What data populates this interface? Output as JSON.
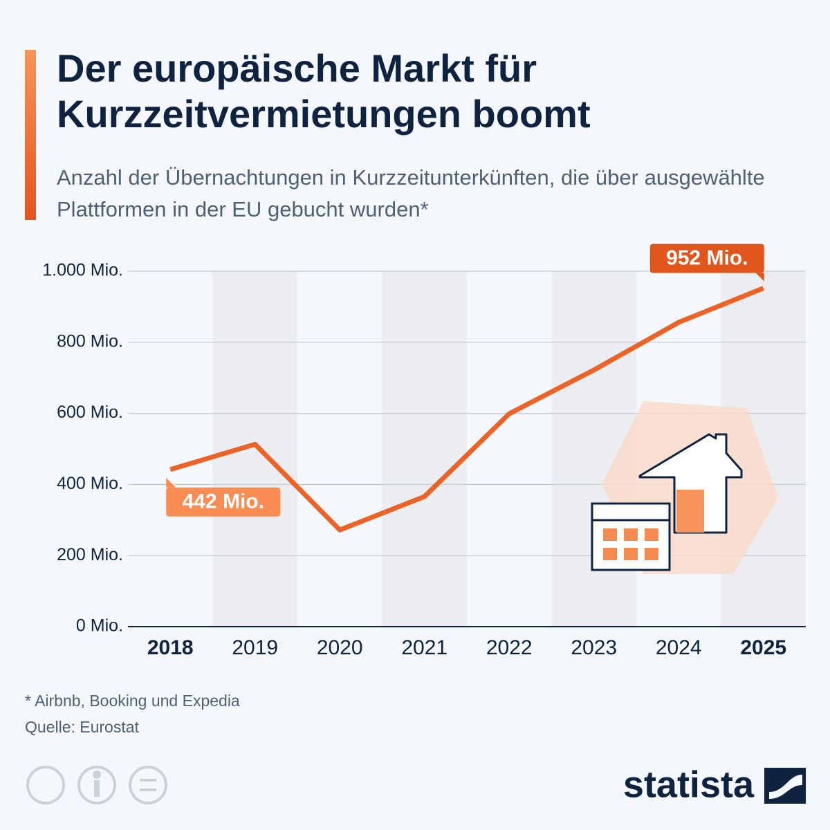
{
  "chart_data": {
    "type": "line",
    "title": "Der europäische Markt für Kurzzeitvermietungen boomt",
    "subtitle": "Anzahl der Übernachtungen in Kurzzeitunterkünften, die über ausgewählte Plattformen in der EU gebucht wurden*",
    "categories": [
      "2018",
      "2019",
      "2020",
      "2021",
      "2022",
      "2023",
      "2024",
      "2025"
    ],
    "series": [
      {
        "name": "Übernachtungen",
        "color": "#ec6328",
        "values": [
          442,
          513,
          272,
          366,
          599,
          722,
          856,
          952
        ],
        "value_labels": [
          "442 Mio.",
          null,
          null,
          null,
          null,
          null,
          null,
          "952 Mio."
        ]
      }
    ],
    "ylim": [
      0,
      1000
    ],
    "yticks": [
      {
        "value": 0,
        "label": "0 Mio."
      },
      {
        "value": 200,
        "label": "200 Mio."
      },
      {
        "value": 400,
        "label": "400 Mio."
      },
      {
        "value": 600,
        "label": "600 Mio."
      },
      {
        "value": 800,
        "label": "800 Mio."
      },
      {
        "value": 1000,
        "label": "1.000 Mio."
      }
    ],
    "grid": true,
    "footnote": "* Airbnb, Booking und Expedia",
    "source": "Quelle: Eurostat",
    "brand": "statista"
  }
}
